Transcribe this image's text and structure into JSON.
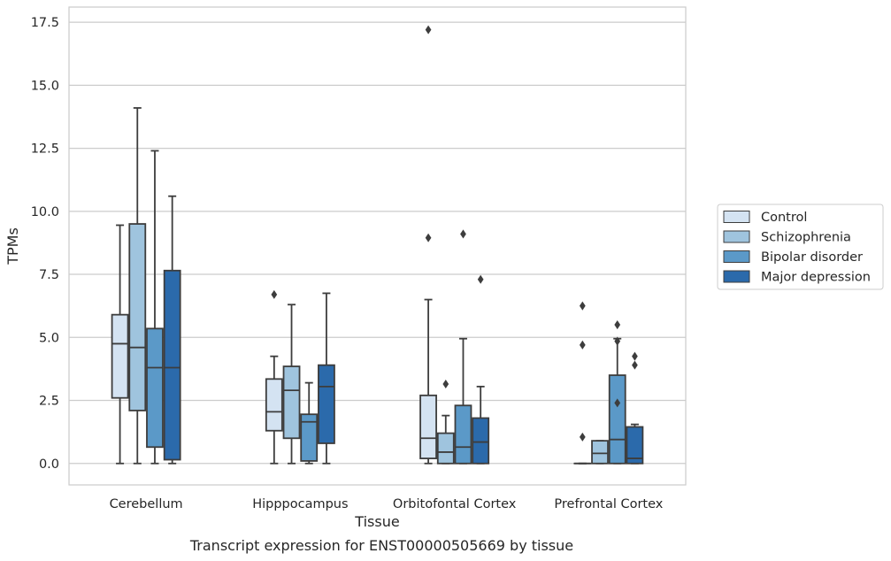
{
  "chart_data": {
    "type": "box",
    "xlabel": "Tissue",
    "ylabel": "TPMs",
    "caption": "Transcript expression for ENST00000505669 by tissue",
    "ylim": [
      -0.85,
      18.1
    ],
    "yticks": [
      0.0,
      2.5,
      5.0,
      7.5,
      10.0,
      12.5,
      15.0,
      17.5
    ],
    "ytick_labels": [
      "0.0",
      "2.5",
      "5.0",
      "7.5",
      "10.0",
      "12.5",
      "15.0",
      "17.5"
    ],
    "grid": "horizontal",
    "legend_position": "right",
    "categories": [
      "Cerebellum",
      "Hipppocampus",
      "Orbitofontal Cortex",
      "Prefrontal Cortex"
    ],
    "series": [
      {
        "name": "Control",
        "color": "#d4e3f2",
        "boxes": [
          {
            "whisker_low": 0.0,
            "q1": 2.6,
            "median": 4.75,
            "q3": 5.9,
            "whisker_high": 9.45,
            "outliers": []
          },
          {
            "whisker_low": 0.0,
            "q1": 1.3,
            "median": 2.05,
            "q3": 3.35,
            "whisker_high": 4.25,
            "outliers": [
              6.7
            ]
          },
          {
            "whisker_low": 0.0,
            "q1": 0.2,
            "median": 1.0,
            "q3": 2.7,
            "whisker_high": 6.5,
            "outliers": [
              8.95,
              17.2
            ]
          },
          {
            "whisker_low": 0.0,
            "q1": 0.0,
            "median": 0.0,
            "q3": 0.0,
            "whisker_high": 0.0,
            "outliers": [
              1.05,
              4.7,
              6.25
            ]
          }
        ]
      },
      {
        "name": "Schizophrenia",
        "color": "#9fc4de",
        "boxes": [
          {
            "whisker_low": 0.0,
            "q1": 2.1,
            "median": 4.6,
            "q3": 9.5,
            "whisker_high": 14.1,
            "outliers": []
          },
          {
            "whisker_low": 0.0,
            "q1": 1.0,
            "median": 2.9,
            "q3": 3.85,
            "whisker_high": 6.3,
            "outliers": []
          },
          {
            "whisker_low": 0.0,
            "q1": 0.0,
            "median": 0.45,
            "q3": 1.2,
            "whisker_high": 1.9,
            "outliers": [
              3.15
            ]
          },
          {
            "whisker_low": 0.0,
            "q1": 0.0,
            "median": 0.4,
            "q3": 0.9,
            "whisker_high": 0.9,
            "outliers": []
          }
        ]
      },
      {
        "name": "Bipolar disorder",
        "color": "#5b99c8",
        "boxes": [
          {
            "whisker_low": 0.0,
            "q1": 0.65,
            "median": 3.8,
            "q3": 5.35,
            "whisker_high": 12.4,
            "outliers": []
          },
          {
            "whisker_low": 0.0,
            "q1": 0.1,
            "median": 1.65,
            "q3": 1.95,
            "whisker_high": 3.2,
            "outliers": []
          },
          {
            "whisker_low": 0.0,
            "q1": 0.0,
            "median": 0.65,
            "q3": 2.3,
            "whisker_high": 4.95,
            "outliers": [
              9.1
            ]
          },
          {
            "whisker_low": 0.0,
            "q1": 0.0,
            "median": 0.95,
            "q3": 3.5,
            "whisker_high": 4.95,
            "outliers": [
              2.4,
              4.85,
              5.5
            ]
          }
        ]
      },
      {
        "name": "Major depression",
        "color": "#2b6aab",
        "boxes": [
          {
            "whisker_low": 0.0,
            "q1": 0.15,
            "median": 3.8,
            "q3": 7.65,
            "whisker_high": 10.6,
            "outliers": []
          },
          {
            "whisker_low": 0.0,
            "q1": 0.8,
            "median": 3.05,
            "q3": 3.9,
            "whisker_high": 6.75,
            "outliers": []
          },
          {
            "whisker_low": 0.0,
            "q1": 0.0,
            "median": 0.85,
            "q3": 1.8,
            "whisker_high": 3.05,
            "outliers": [
              7.3
            ]
          },
          {
            "whisker_low": 0.0,
            "q1": 0.0,
            "median": 0.2,
            "q3": 1.45,
            "whisker_high": 1.55,
            "outliers": [
              3.9,
              4.25
            ]
          }
        ]
      }
    ]
  }
}
